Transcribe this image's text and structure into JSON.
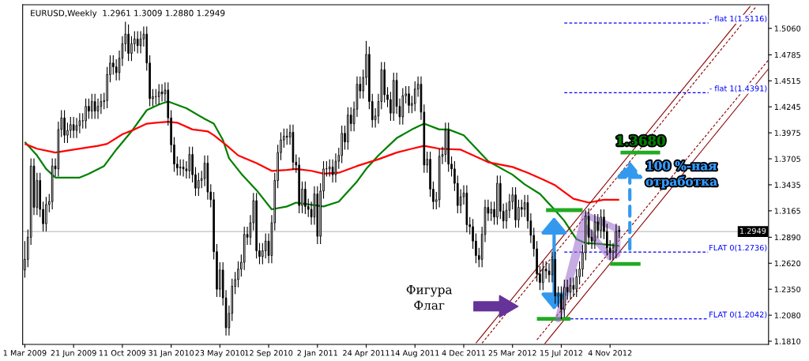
{
  "chart_data": {
    "type": "candlestick",
    "title": "EURUSD,Weekly  1.2961 1.3009 1.2880 1.2949",
    "color": "#000000",
    "x": [
      "2009-03-01",
      "2009-03-08",
      "2009-03-15",
      "2009-03-22",
      "2009-03-29",
      "2009-04-05",
      "2009-04-12",
      "2009-04-19",
      "2009-04-26",
      "2009-05-03",
      "2009-05-10",
      "2009-05-17",
      "2009-05-24",
      "2009-05-31",
      "2009-06-07",
      "2009-06-14",
      "2009-06-21",
      "2009-06-28",
      "2009-07-05",
      "2009-07-12",
      "2009-07-19",
      "2009-07-26",
      "2009-08-02",
      "2009-08-09",
      "2009-08-16",
      "2009-08-23",
      "2009-08-30",
      "2009-09-06",
      "2009-09-13",
      "2009-09-20",
      "2009-09-27",
      "2009-10-04",
      "2009-10-11",
      "2009-10-18",
      "2009-10-25",
      "2009-11-01",
      "2009-11-08",
      "2009-11-15",
      "2009-11-22",
      "2009-11-29",
      "2009-12-06",
      "2009-12-13",
      "2009-12-20",
      "2009-12-27",
      "2010-01-03",
      "2010-01-10",
      "2010-01-17",
      "2010-01-24",
      "2010-01-31",
      "2010-02-07",
      "2010-02-14",
      "2010-02-21",
      "2010-02-28",
      "2010-03-07",
      "2010-03-14",
      "2010-03-21",
      "2010-03-28",
      "2010-04-04",
      "2010-04-11",
      "2010-04-18",
      "2010-04-25",
      "2010-05-02",
      "2010-05-09",
      "2010-05-16",
      "2010-05-23",
      "2010-05-30",
      "2010-06-06",
      "2010-06-13",
      "2010-06-20",
      "2010-06-27",
      "2010-07-04",
      "2010-07-11",
      "2010-07-18",
      "2010-07-25",
      "2010-08-01",
      "2010-08-08",
      "2010-08-15",
      "2010-08-22",
      "2010-08-29",
      "2010-09-05",
      "2010-09-12",
      "2010-09-19",
      "2010-09-26",
      "2010-10-03",
      "2010-10-10",
      "2010-10-17",
      "2010-10-24",
      "2010-10-31",
      "2010-11-07",
      "2010-11-14",
      "2010-11-21",
      "2010-11-28",
      "2010-12-05",
      "2010-12-12",
      "2010-12-19",
      "2010-12-26",
      "2011-01-02",
      "2011-01-09",
      "2011-01-16",
      "2011-01-23",
      "2011-01-30",
      "2011-02-06",
      "2011-02-13",
      "2011-02-20",
      "2011-02-27",
      "2011-03-06",
      "2011-03-13",
      "2011-03-20",
      "2011-03-27",
      "2011-04-03",
      "2011-04-10",
      "2011-04-17",
      "2011-04-24",
      "2011-05-01",
      "2011-05-08",
      "2011-05-15",
      "2011-05-22",
      "2011-05-29",
      "2011-06-05",
      "2011-06-12",
      "2011-06-19",
      "2011-06-26",
      "2011-07-03",
      "2011-07-10",
      "2011-07-17",
      "2011-07-24",
      "2011-07-31",
      "2011-08-07",
      "2011-08-14",
      "2011-08-21",
      "2011-08-28",
      "2011-09-04",
      "2011-09-11",
      "2011-09-18",
      "2011-09-25",
      "2011-10-02",
      "2011-10-09",
      "2011-10-16",
      "2011-10-23",
      "2011-10-30",
      "2011-11-06",
      "2011-11-13",
      "2011-11-20",
      "2011-11-27",
      "2011-12-04",
      "2011-12-11",
      "2011-12-18",
      "2011-12-25",
      "2012-01-01",
      "2012-01-08",
      "2012-01-15",
      "2012-01-22",
      "2012-01-29",
      "2012-02-05",
      "2012-02-12",
      "2012-02-19",
      "2012-02-26",
      "2012-03-04",
      "2012-03-11",
      "2012-03-18",
      "2012-03-25",
      "2012-04-01",
      "2012-04-08",
      "2012-04-15",
      "2012-04-22",
      "2012-04-29",
      "2012-05-06",
      "2012-05-13",
      "2012-05-20",
      "2012-05-27",
      "2012-06-03",
      "2012-06-10",
      "2012-06-17",
      "2012-06-24",
      "2012-07-01",
      "2012-07-08",
      "2012-07-15",
      "2012-07-22",
      "2012-07-29",
      "2012-08-05",
      "2012-08-12",
      "2012-08-19",
      "2012-08-26",
      "2012-09-02",
      "2012-09-09",
      "2012-09-16",
      "2012-09-23",
      "2012-09-30",
      "2012-10-07",
      "2012-10-14",
      "2012-10-21",
      "2012-10-28",
      "2012-11-04",
      "2012-11-11",
      "2012-11-18",
      "2012-11-25"
    ],
    "ohlc": [
      [
        1.255,
        1.285,
        1.247,
        1.266
      ],
      [
        1.266,
        1.297,
        1.258,
        1.289
      ],
      [
        1.289,
        1.371,
        1.281,
        1.363
      ],
      [
        1.363,
        1.371,
        1.312,
        1.32
      ],
      [
        1.32,
        1.356,
        1.312,
        1.348
      ],
      [
        1.348,
        1.356,
        1.31,
        1.318
      ],
      [
        1.318,
        1.326,
        1.295,
        1.303
      ],
      [
        1.303,
        1.331,
        1.295,
        1.323
      ],
      [
        1.323,
        1.334,
        1.315,
        1.326
      ],
      [
        1.326,
        1.371,
        1.318,
        1.363
      ],
      [
        1.363,
        1.371,
        1.352,
        1.36
      ],
      [
        1.36,
        1.409,
        1.352,
        1.401
      ],
      [
        1.401,
        1.421,
        1.393,
        1.413
      ],
      [
        1.413,
        1.421,
        1.387,
        1.395
      ],
      [
        1.395,
        1.408,
        1.387,
        1.4
      ],
      [
        1.4,
        1.414,
        1.392,
        1.406
      ],
      [
        1.406,
        1.414,
        1.392,
        1.4
      ],
      [
        1.4,
        1.413,
        1.392,
        1.405
      ],
      [
        1.405,
        1.418,
        1.397,
        1.41
      ],
      [
        1.41,
        1.418,
        1.402,
        1.41
      ],
      [
        1.41,
        1.433,
        1.402,
        1.425
      ],
      [
        1.425,
        1.433,
        1.412,
        1.42
      ],
      [
        1.42,
        1.438,
        1.412,
        1.43
      ],
      [
        1.43,
        1.438,
        1.412,
        1.42
      ],
      [
        1.42,
        1.433,
        1.412,
        1.425
      ],
      [
        1.425,
        1.438,
        1.417,
        1.43
      ],
      [
        1.43,
        1.439,
        1.422,
        1.431
      ],
      [
        1.431,
        1.466,
        1.423,
        1.458
      ],
      [
        1.458,
        1.478,
        1.45,
        1.47
      ],
      [
        1.47,
        1.478,
        1.458,
        1.466
      ],
      [
        1.466,
        1.474,
        1.452,
        1.46
      ],
      [
        1.46,
        1.483,
        1.452,
        1.475
      ],
      [
        1.475,
        1.498,
        1.467,
        1.49
      ],
      [
        1.49,
        1.513,
        1.482,
        1.5
      ],
      [
        1.5,
        1.51,
        1.472,
        1.48
      ],
      [
        1.48,
        1.498,
        1.472,
        1.49
      ],
      [
        1.49,
        1.503,
        1.482,
        1.495
      ],
      [
        1.495,
        1.503,
        1.48,
        1.488
      ],
      [
        1.488,
        1.503,
        1.48,
        1.495
      ],
      [
        1.495,
        1.508,
        1.487,
        1.5
      ],
      [
        1.5,
        1.508,
        1.462,
        1.47
      ],
      [
        1.47,
        1.478,
        1.425,
        1.433
      ],
      [
        1.433,
        1.443,
        1.425,
        1.435
      ],
      [
        1.435,
        1.443,
        1.427,
        1.435
      ],
      [
        1.435,
        1.448,
        1.427,
        1.44
      ],
      [
        1.44,
        1.448,
        1.43,
        1.438
      ],
      [
        1.438,
        1.45,
        1.43,
        1.442
      ],
      [
        1.442,
        1.45,
        1.405,
        1.413
      ],
      [
        1.413,
        1.421,
        1.377,
        1.385
      ],
      [
        1.385,
        1.393,
        1.357,
        1.365
      ],
      [
        1.365,
        1.373,
        1.353,
        1.361
      ],
      [
        1.361,
        1.37,
        1.353,
        1.362
      ],
      [
        1.362,
        1.37,
        1.352,
        1.36
      ],
      [
        1.36,
        1.368,
        1.35,
        1.358
      ],
      [
        1.358,
        1.383,
        1.35,
        1.375
      ],
      [
        1.375,
        1.383,
        1.346,
        1.354
      ],
      [
        1.354,
        1.362,
        1.332,
        1.34
      ],
      [
        1.34,
        1.356,
        1.332,
        1.348
      ],
      [
        1.348,
        1.358,
        1.34,
        1.35
      ],
      [
        1.35,
        1.374,
        1.342,
        1.366
      ],
      [
        1.366,
        1.374,
        1.328,
        1.336
      ],
      [
        1.336,
        1.344,
        1.32,
        1.328
      ],
      [
        1.328,
        1.336,
        1.266,
        1.274
      ],
      [
        1.274,
        1.282,
        1.227,
        1.235
      ],
      [
        1.235,
        1.263,
        1.227,
        1.255
      ],
      [
        1.255,
        1.263,
        1.218,
        1.226
      ],
      [
        1.226,
        1.234,
        1.187,
        1.195
      ],
      [
        1.195,
        1.218,
        1.187,
        1.21
      ],
      [
        1.21,
        1.246,
        1.202,
        1.238
      ],
      [
        1.238,
        1.253,
        1.23,
        1.245
      ],
      [
        1.245,
        1.264,
        1.237,
        1.256
      ],
      [
        1.256,
        1.271,
        1.248,
        1.263
      ],
      [
        1.263,
        1.3,
        1.255,
        1.292
      ],
      [
        1.292,
        1.3,
        1.281,
        1.289
      ],
      [
        1.289,
        1.312,
        1.281,
        1.304
      ],
      [
        1.304,
        1.335,
        1.296,
        1.327
      ],
      [
        1.327,
        1.335,
        1.267,
        1.275
      ],
      [
        1.275,
        1.283,
        1.261,
        1.269
      ],
      [
        1.269,
        1.283,
        1.261,
        1.275
      ],
      [
        1.275,
        1.293,
        1.267,
        1.285
      ],
      [
        1.285,
        1.293,
        1.262,
        1.27
      ],
      [
        1.27,
        1.312,
        1.262,
        1.304
      ],
      [
        1.304,
        1.356,
        1.296,
        1.348
      ],
      [
        1.348,
        1.385,
        1.34,
        1.377
      ],
      [
        1.377,
        1.398,
        1.369,
        1.39
      ],
      [
        1.39,
        1.402,
        1.382,
        1.394
      ],
      [
        1.394,
        1.402,
        1.385,
        1.393
      ],
      [
        1.393,
        1.406,
        1.385,
        1.398
      ],
      [
        1.398,
        1.406,
        1.359,
        1.367
      ],
      [
        1.367,
        1.375,
        1.356,
        1.364
      ],
      [
        1.364,
        1.372,
        1.314,
        1.322
      ],
      [
        1.322,
        1.347,
        1.314,
        1.339
      ],
      [
        1.339,
        1.347,
        1.313,
        1.321
      ],
      [
        1.321,
        1.329,
        1.31,
        1.318
      ],
      [
        1.318,
        1.326,
        1.302,
        1.31
      ],
      [
        1.31,
        1.342,
        1.302,
        1.334
      ],
      [
        1.334,
        1.342,
        1.282,
        1.29
      ],
      [
        1.29,
        1.345,
        1.282,
        1.337
      ],
      [
        1.337,
        1.368,
        1.329,
        1.36
      ],
      [
        1.36,
        1.368,
        1.352,
        1.36
      ],
      [
        1.36,
        1.37,
        1.352,
        1.362
      ],
      [
        1.362,
        1.37,
        1.346,
        1.354
      ],
      [
        1.354,
        1.376,
        1.346,
        1.368
      ],
      [
        1.368,
        1.382,
        1.36,
        1.374
      ],
      [
        1.374,
        1.405,
        1.366,
        1.397
      ],
      [
        1.397,
        1.405,
        1.38,
        1.388
      ],
      [
        1.388,
        1.424,
        1.38,
        1.416
      ],
      [
        1.416,
        1.424,
        1.399,
        1.407
      ],
      [
        1.407,
        1.43,
        1.399,
        1.422
      ],
      [
        1.422,
        1.456,
        1.414,
        1.448
      ],
      [
        1.448,
        1.456,
        1.433,
        1.441
      ],
      [
        1.441,
        1.463,
        1.433,
        1.455
      ],
      [
        1.455,
        1.493,
        1.447,
        1.479
      ],
      [
        1.479,
        1.487,
        1.422,
        1.43
      ],
      [
        1.43,
        1.438,
        1.403,
        1.411
      ],
      [
        1.411,
        1.423,
        1.403,
        1.415
      ],
      [
        1.415,
        1.438,
        1.407,
        1.43
      ],
      [
        1.43,
        1.471,
        1.422,
        1.463
      ],
      [
        1.463,
        1.471,
        1.429,
        1.437
      ],
      [
        1.437,
        1.445,
        1.424,
        1.432
      ],
      [
        1.432,
        1.44,
        1.41,
        1.418
      ],
      [
        1.418,
        1.46,
        1.41,
        1.452
      ],
      [
        1.452,
        1.46,
        1.417,
        1.425
      ],
      [
        1.425,
        1.433,
        1.406,
        1.414
      ],
      [
        1.414,
        1.444,
        1.406,
        1.436
      ],
      [
        1.436,
        1.446,
        1.428,
        1.438
      ],
      [
        1.438,
        1.446,
        1.418,
        1.426
      ],
      [
        1.426,
        1.436,
        1.418,
        1.428
      ],
      [
        1.428,
        1.451,
        1.42,
        1.443
      ],
      [
        1.443,
        1.456,
        1.435,
        1.448
      ],
      [
        1.448,
        1.456,
        1.411,
        1.419
      ],
      [
        1.419,
        1.427,
        1.356,
        1.364
      ],
      [
        1.364,
        1.378,
        1.356,
        1.37
      ],
      [
        1.37,
        1.378,
        1.331,
        1.339
      ],
      [
        1.339,
        1.347,
        1.318,
        1.326
      ],
      [
        1.326,
        1.336,
        1.318,
        1.328
      ],
      [
        1.328,
        1.381,
        1.32,
        1.373
      ],
      [
        1.373,
        1.383,
        1.365,
        1.375
      ],
      [
        1.375,
        1.408,
        1.367,
        1.4
      ],
      [
        1.4,
        1.408,
        1.357,
        1.365
      ],
      [
        1.365,
        1.373,
        1.352,
        1.36
      ],
      [
        1.36,
        1.368,
        1.337,
        1.345
      ],
      [
        1.345,
        1.353,
        1.314,
        1.322
      ],
      [
        1.322,
        1.339,
        1.314,
        1.331
      ],
      [
        1.331,
        1.343,
        1.323,
        1.335
      ],
      [
        1.335,
        1.343,
        1.294,
        1.302
      ],
      [
        1.302,
        1.31,
        1.292,
        1.3
      ],
      [
        1.3,
        1.308,
        1.277,
        1.285
      ],
      [
        1.285,
        1.293,
        1.262,
        1.27
      ],
      [
        1.27,
        1.278,
        1.258,
        1.266
      ],
      [
        1.266,
        1.3,
        1.258,
        1.292
      ],
      [
        1.292,
        1.328,
        1.284,
        1.32
      ],
      [
        1.32,
        1.328,
        1.306,
        1.314
      ],
      [
        1.314,
        1.326,
        1.306,
        1.318
      ],
      [
        1.318,
        1.326,
        1.302,
        1.31
      ],
      [
        1.31,
        1.353,
        1.302,
        1.345
      ],
      [
        1.345,
        1.353,
        1.308,
        1.316
      ],
      [
        1.316,
        1.324,
        1.298,
        1.306
      ],
      [
        1.306,
        1.325,
        1.298,
        1.317
      ],
      [
        1.317,
        1.334,
        1.309,
        1.326
      ],
      [
        1.326,
        1.341,
        1.318,
        1.333
      ],
      [
        1.333,
        1.341,
        1.299,
        1.307
      ],
      [
        1.307,
        1.328,
        1.299,
        1.32
      ],
      [
        1.32,
        1.328,
        1.31,
        1.318
      ],
      [
        1.318,
        1.333,
        1.31,
        1.325
      ],
      [
        1.325,
        1.333,
        1.298,
        1.306
      ],
      [
        1.306,
        1.314,
        1.283,
        1.291
      ],
      [
        1.291,
        1.299,
        1.269,
        1.277
      ],
      [
        1.277,
        1.285,
        1.243,
        1.251
      ],
      [
        1.251,
        1.259,
        1.234,
        1.242
      ],
      [
        1.242,
        1.264,
        1.234,
        1.256
      ],
      [
        1.256,
        1.264,
        1.246,
        1.254
      ],
      [
        1.254,
        1.262,
        1.242,
        1.25
      ],
      [
        1.25,
        1.274,
        1.242,
        1.266
      ],
      [
        1.266,
        1.274,
        1.22,
        1.228
      ],
      [
        1.228,
        1.238,
        1.216,
        1.23
      ],
      [
        1.23,
        1.238,
        1.204,
        1.214
      ],
      [
        1.214,
        1.245,
        1.206,
        1.237
      ],
      [
        1.237,
        1.245,
        1.224,
        1.232
      ],
      [
        1.232,
        1.247,
        1.224,
        1.239
      ],
      [
        1.239,
        1.247,
        1.227,
        1.235
      ],
      [
        1.235,
        1.256,
        1.227,
        1.248
      ],
      [
        1.248,
        1.264,
        1.24,
        1.256
      ],
      [
        1.256,
        1.281,
        1.248,
        1.273
      ],
      [
        1.273,
        1.317,
        1.265,
        1.311
      ],
      [
        1.311,
        1.319,
        1.281,
        1.289
      ],
      [
        1.289,
        1.297,
        1.277,
        1.285
      ],
      [
        1.285,
        1.313,
        1.277,
        1.305
      ],
      [
        1.305,
        1.313,
        1.288,
        1.296
      ],
      [
        1.296,
        1.318,
        1.288,
        1.31
      ],
      [
        1.31,
        1.318,
        1.287,
        1.295
      ],
      [
        1.295,
        1.303,
        1.27,
        1.278
      ],
      [
        1.278,
        1.286,
        1.265,
        1.273
      ],
      [
        1.273,
        1.283,
        1.265,
        1.275
      ],
      [
        1.275,
        1.303,
        1.267,
        1.295
      ],
      [
        1.2961,
        1.3009,
        1.288,
        1.2949
      ]
    ],
    "series": [
      {
        "type": "line",
        "color": "#008000",
        "line_style": "solid",
        "x": [
          "2009-03-01",
          "2009-03-29",
          "2009-04-19",
          "2009-05-10",
          "2009-07-05",
          "2009-07-26",
          "2009-08-30",
          "2009-09-27",
          "2009-11-01",
          "2009-12-06",
          "2010-01-03",
          "2010-01-24",
          "2010-03-07",
          "2010-04-18",
          "2010-05-09",
          "2010-05-30",
          "2010-06-13",
          "2010-07-11",
          "2010-08-15",
          "2010-09-19",
          "2010-10-24",
          "2010-11-14",
          "2011-01-16",
          "2011-02-20",
          "2011-04-03",
          "2011-04-24",
          "2011-05-22",
          "2011-07-03",
          "2011-08-07",
          "2011-09-04",
          "2011-10-09",
          "2011-10-30",
          "2011-12-04",
          "2012-01-29",
          "2012-03-25",
          "2012-04-22",
          "2012-05-27",
          "2012-07-01",
          "2012-07-22",
          "2012-08-19",
          "2012-09-09",
          "2012-10-14",
          "2012-11-25"
        ],
        "values": [
          1.388,
          1.374,
          1.36,
          1.351,
          1.351,
          1.355,
          1.363,
          1.38,
          1.399,
          1.421,
          1.427,
          1.43,
          1.423,
          1.412,
          1.407,
          1.39,
          1.371,
          1.355,
          1.338,
          1.318,
          1.321,
          1.325,
          1.321,
          1.326,
          1.347,
          1.36,
          1.374,
          1.392,
          1.401,
          1.407,
          1.401,
          1.401,
          1.395,
          1.368,
          1.354,
          1.344,
          1.334,
          1.317,
          1.306,
          1.287,
          1.283,
          1.282,
          1.28
        ]
      },
      {
        "type": "line",
        "color": "#ff0000",
        "line_style": "solid",
        "x": [
          "2009-03-01",
          "2009-03-29",
          "2009-05-10",
          "2009-06-21",
          "2009-08-16",
          "2009-09-06",
          "2009-10-11",
          "2009-11-08",
          "2009-12-06",
          "2009-12-27",
          "2010-01-24",
          "2010-02-14",
          "2010-03-21",
          "2010-04-25",
          "2010-05-09",
          "2010-06-06",
          "2010-07-04",
          "2010-08-15",
          "2010-09-19",
          "2010-10-24",
          "2010-11-14",
          "2010-12-19",
          "2011-01-16",
          "2011-02-20",
          "2011-04-03",
          "2011-05-22",
          "2011-07-03",
          "2011-08-07",
          "2011-09-04",
          "2011-10-09",
          "2011-11-27",
          "2012-01-29",
          "2012-03-25",
          "2012-04-29",
          "2012-06-03",
          "2012-07-01",
          "2012-08-12",
          "2012-09-16",
          "2012-10-21",
          "2012-11-25"
        ],
        "values": [
          1.386,
          1.381,
          1.377,
          1.38,
          1.384,
          1.386,
          1.396,
          1.401,
          1.407,
          1.408,
          1.409,
          1.408,
          1.401,
          1.399,
          1.395,
          1.385,
          1.374,
          1.366,
          1.358,
          1.359,
          1.36,
          1.358,
          1.355,
          1.356,
          1.363,
          1.37,
          1.377,
          1.381,
          1.384,
          1.381,
          1.38,
          1.367,
          1.362,
          1.356,
          1.349,
          1.343,
          1.329,
          1.325,
          1.328,
          1.328
        ]
      },
      {
        "type": "line",
        "color": "#8b0000",
        "line_style": "solid",
        "x": [
          "2012-01-01",
          "2013-09-22"
        ],
        "values": [
          1.179,
          1.529
        ]
      },
      {
        "type": "line",
        "color": "#8b0000",
        "line_style": "dashed",
        "x": [
          "2012-01-15",
          "2013-10-06"
        ],
        "values": [
          1.179,
          1.529
        ]
      },
      {
        "type": "line",
        "color": "#8b0000",
        "line_style": "dashed",
        "x": [
          "2012-05-20",
          "2013-11-03"
        ],
        "values": [
          1.1825,
          1.4732
        ]
      },
      {
        "type": "line",
        "color": "#8b0000",
        "line_style": "solid",
        "x": [
          "2012-06-07",
          "2013-11-03"
        ],
        "values": [
          1.1784,
          1.4641
        ]
      },
      {
        "type": "line",
        "name": "- flat 1(1.5116)",
        "color": "#0000ff",
        "line_style": "dashed",
        "x": [
          "2012-07-22",
          "2013-11-03"
        ],
        "values": [
          1.5116,
          1.5116
        ]
      },
      {
        "type": "line",
        "name": "- flat 1(1.4391)",
        "color": "#0000ff",
        "line_style": "dashed",
        "x": [
          "2012-07-22",
          "2013-11-03"
        ],
        "values": [
          1.4391,
          1.4391
        ]
      },
      {
        "type": "line",
        "name": "FLAT 0(1.2736)",
        "color": "#0000ff",
        "line_style": "dashed",
        "x": [
          "2012-07-22",
          "2013-11-03"
        ],
        "values": [
          1.2736,
          1.2736
        ]
      },
      {
        "type": "line",
        "name": "FLAT 0(1.2042)",
        "color": "#0000ff",
        "line_style": "dashed",
        "x": [
          "2012-08-05",
          "2013-11-03"
        ],
        "values": [
          1.2042,
          1.2042
        ]
      },
      {
        "type": "line",
        "color": "#22aa22",
        "line_style": "solid",
        "x": [
          "2012-06-10",
          "2012-09-02"
        ],
        "values": [
          1.3172,
          1.3172
        ]
      },
      {
        "type": "line",
        "color": "#22aa22",
        "line_style": "solid",
        "x": [
          "2012-05-20",
          "2012-08-05"
        ],
        "values": [
          1.2042,
          1.2042
        ]
      },
      {
        "type": "line",
        "color": "#22aa22",
        "line_style": "solid",
        "x": [
          "2012-11-04",
          "2013-01-13"
        ],
        "values": [
          1.2613,
          1.2613
        ]
      },
      {
        "type": "line",
        "color": "#22aa22",
        "line_style": "solid",
        "x": [
          "2012-11-28",
          "2013-02-27"
        ],
        "values": [
          1.377,
          1.377
        ]
      }
    ],
    "ref_lines": [
      {
        "axis": "y",
        "value": 1.2949,
        "label": "1.2949",
        "color": "#c0c0c0",
        "line_style": "solid"
      }
    ],
    "annotations": [
      "Фигура\nФлаг",
      "100 %-ная\nотработка",
      {
        "text": "1.3680",
        "x": "2013-01-13",
        "y": 1.377
      }
    ],
    "xlim": [
      "2009-02-24",
      "2013-11-03"
    ],
    "xticks": [
      {
        "value": "2009-03-01",
        "label": "1 Mar 2009"
      },
      {
        "value": "2009-06-21",
        "label": "21 Jun 2009"
      },
      {
        "value": "2009-10-11",
        "label": "11 Oct 2009"
      },
      {
        "value": "2010-01-31",
        "label": "31 Jan 2010"
      },
      {
        "value": "2010-05-23",
        "label": "23 May 2010"
      },
      {
        "value": "2010-09-12",
        "label": "12 Sep 2010"
      },
      {
        "value": "2011-01-02",
        "label": "2 Jan 2011"
      },
      {
        "value": "2011-04-24",
        "label": "24 Apr 2011"
      },
      {
        "value": "2011-08-14",
        "label": "14 Aug 2011"
      },
      {
        "value": "2011-12-04",
        "label": "4 Dec 2011"
      },
      {
        "value": "2012-03-25",
        "label": "25 Mar 2012"
      },
      {
        "value": "2012-07-15",
        "label": "15 Jul 2012"
      },
      {
        "value": "2012-11-04",
        "label": "4 Nov 2012"
      }
    ],
    "ylim": [
      1.1777,
      1.5306
    ],
    "yticks": [
      {
        "value": 1.181,
        "label": "1.1810"
      },
      {
        "value": 1.208,
        "label": "1.2080"
      },
      {
        "value": 1.235,
        "label": "1.2350"
      },
      {
        "value": 1.262,
        "label": "1.2620"
      },
      {
        "value": 1.289,
        "label": "1.2890"
      },
      {
        "value": 1.3165,
        "label": "1.3165"
      },
      {
        "value": 1.3435,
        "label": "1.3435"
      },
      {
        "value": 1.3705,
        "label": "1.3705"
      },
      {
        "value": 1.3975,
        "label": "1.3975"
      },
      {
        "value": 1.4245,
        "label": "1.4245"
      },
      {
        "value": 1.4515,
        "label": "1.4515"
      },
      {
        "value": 1.4785,
        "label": "1.4785"
      },
      {
        "value": 1.506,
        "label": "1.5060"
      }
    ],
    "grid": false,
    "legend": false
  }
}
